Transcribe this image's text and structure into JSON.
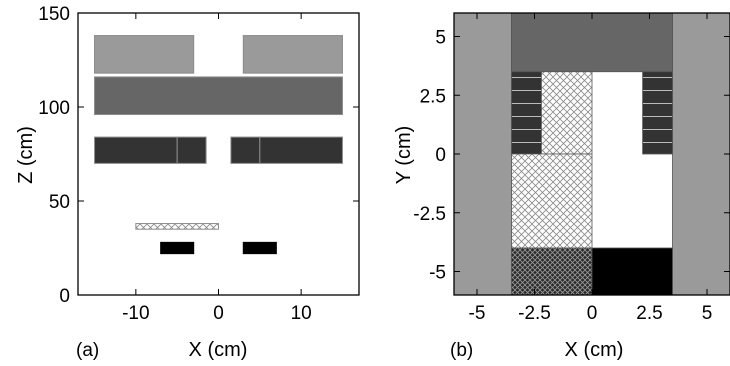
{
  "panel_a": {
    "label": "(a)",
    "x_axis": {
      "title": "X (cm)",
      "range": [
        -17,
        17
      ],
      "ticks": [
        {
          "v": -10,
          "label": "-10"
        },
        {
          "v": 0,
          "label": "0"
        },
        {
          "v": 10,
          "label": "10"
        }
      ]
    },
    "z_axis": {
      "title": "Z (cm)",
      "range": [
        0,
        150
      ],
      "ticks": [
        {
          "v": 0,
          "label": "0"
        },
        {
          "v": 50,
          "label": "50"
        },
        {
          "v": 100,
          "label": "100"
        },
        {
          "v": 150,
          "label": "150"
        }
      ]
    },
    "shapes": [
      {
        "name": "top-left-block",
        "x0": -15,
        "x1": -3,
        "z0": 118,
        "z1": 138,
        "fill": "#9a9a9a"
      },
      {
        "name": "top-right-block",
        "x0": 3,
        "x1": 15,
        "z0": 118,
        "z1": 138,
        "fill": "#9a9a9a"
      },
      {
        "name": "wide-middle-block",
        "x0": -15,
        "x1": 15,
        "z0": 96,
        "z1": 116,
        "fill": "#666666"
      },
      {
        "name": "left-bar-outer",
        "x0": -15,
        "x1": -5,
        "z0": 70,
        "z1": 84,
        "fill": "#333333"
      },
      {
        "name": "left-bar-inner",
        "x0": -5,
        "x1": -1.5,
        "z0": 70,
        "z1": 84,
        "fill": "#333333"
      },
      {
        "name": "right-bar-inner",
        "x0": 1.5,
        "x1": 5,
        "z0": 70,
        "z1": 84,
        "fill": "#333333"
      },
      {
        "name": "right-bar-outer",
        "x0": 5,
        "x1": 15,
        "z0": 70,
        "z1": 84,
        "fill": "#333333"
      },
      {
        "name": "hatched-strip",
        "x0": -10,
        "x1": 0,
        "z0": 35,
        "z1": 38,
        "fill": "hatch"
      },
      {
        "name": "left-black-pad",
        "x0": -7,
        "x1": -3,
        "z0": 22,
        "z1": 28,
        "fill": "#000000"
      },
      {
        "name": "right-black-pad",
        "x0": 3,
        "x1": 7,
        "z0": 22,
        "z1": 28,
        "fill": "#000000"
      }
    ]
  },
  "panel_b": {
    "label": "(b)",
    "x_axis": {
      "title": "X (cm)",
      "range": [
        -6,
        6
      ],
      "ticks": [
        {
          "v": -5,
          "label": "-5"
        },
        {
          "v": -2.5,
          "label": "-2.5"
        },
        {
          "v": 0,
          "label": "0"
        },
        {
          "v": 2.5,
          "label": "2.5"
        },
        {
          "v": 5,
          "label": "5"
        }
      ]
    },
    "y_axis": {
      "title": "Y (cm)",
      "range": [
        -6,
        6
      ],
      "ticks": [
        {
          "v": 5,
          "label": "5"
        },
        {
          "v": 2.5,
          "label": "2.5"
        },
        {
          "v": 0,
          "label": "0"
        },
        {
          "v": -2.5,
          "label": "-2.5"
        },
        {
          "v": -5,
          "label": "-5"
        }
      ]
    },
    "shapes": [
      {
        "name": "left-gray-wall",
        "x0": -6,
        "x1": -3.5,
        "y0": -6,
        "y1": 6,
        "fill": "#9a9a9a"
      },
      {
        "name": "right-gray-wall",
        "x0": 3.5,
        "x1": 6,
        "y0": -6,
        "y1": 6,
        "fill": "#9a9a9a"
      },
      {
        "name": "top-dark-block",
        "x0": -3.5,
        "x1": 3.5,
        "y0": 3.5,
        "y1": 6,
        "fill": "#666666"
      },
      {
        "name": "left-striped-column",
        "x0": -3.5,
        "x1": -2.2,
        "y0": 0,
        "y1": 3.5,
        "fill": "stripes"
      },
      {
        "name": "right-striped-column",
        "x0": 2.2,
        "x1": 3.5,
        "y0": 0,
        "y1": 3.5,
        "fill": "stripes"
      },
      {
        "name": "hatched-upper-column",
        "x0": -2.2,
        "x1": 0,
        "y0": 0,
        "y1": 3.5,
        "fill": "hatch"
      },
      {
        "name": "hatched-lower-area",
        "x0": -3.5,
        "x1": 0,
        "y0": -4,
        "y1": 0,
        "fill": "hatch"
      },
      {
        "name": "dense-hatch-block",
        "x0": -3.5,
        "x1": 0,
        "y0": -6,
        "y1": -4,
        "fill": "densehatch"
      },
      {
        "name": "black-block",
        "x0": 0,
        "x1": 3.5,
        "y0": -6,
        "y1": -4,
        "fill": "#000000"
      }
    ]
  }
}
